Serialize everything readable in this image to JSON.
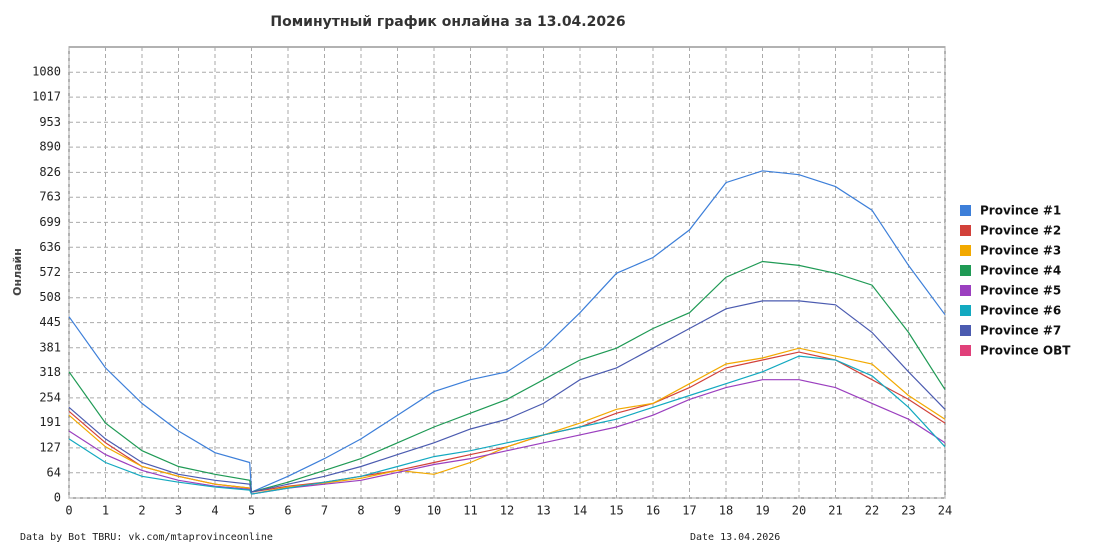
{
  "chart_data": {
    "type": "line",
    "title": "Поминутный график онлайна за 13.04.2026",
    "ylabel": "Онлайн",
    "source": "Data by Bot TBRU: vk.com/mtaprovinceonline",
    "date_note": "Date 13.04.2026",
    "x": [
      0,
      1,
      2,
      3,
      4,
      4.95,
      5,
      6,
      7,
      8,
      9,
      10,
      11,
      12,
      13,
      14,
      15,
      16,
      17,
      18,
      19,
      20,
      21,
      22,
      23,
      24
    ],
    "xlim": [
      0,
      24
    ],
    "xticks": [
      0,
      1,
      2,
      3,
      4,
      5,
      6,
      7,
      8,
      9,
      10,
      11,
      12,
      13,
      14,
      15,
      16,
      17,
      18,
      19,
      20,
      21,
      22,
      23,
      24
    ],
    "ylim": [
      0,
      1144
    ],
    "yticks": [
      0,
      64,
      127,
      191,
      254,
      318,
      381,
      445,
      508,
      572,
      636,
      699,
      763,
      826,
      890,
      953,
      1017,
      1080
    ],
    "grid": true,
    "series": [
      {
        "name": "Province #1",
        "color": "#3d7fd9",
        "values": [
          460,
          330,
          240,
          170,
          115,
          90,
          15,
          55,
          100,
          150,
          210,
          270,
          300,
          320,
          380,
          470,
          570,
          610,
          680,
          800,
          830,
          820,
          790,
          730,
          590,
          465
        ]
      },
      {
        "name": "Province #2",
        "color": "#d2413a",
        "values": [
          220,
          140,
          80,
          55,
          35,
          25,
          15,
          30,
          40,
          55,
          70,
          90,
          110,
          130,
          160,
          180,
          215,
          240,
          280,
          330,
          350,
          370,
          350,
          300,
          250,
          190
        ]
      },
      {
        "name": "Province #3",
        "color": "#f2a900",
        "values": [
          210,
          130,
          80,
          55,
          35,
          25,
          10,
          28,
          38,
          50,
          70,
          60,
          90,
          130,
          160,
          190,
          225,
          240,
          290,
          340,
          355,
          380,
          360,
          340,
          260,
          200
        ]
      },
      {
        "name": "Province #4",
        "color": "#1f9a55",
        "values": [
          320,
          190,
          120,
          80,
          60,
          45,
          15,
          40,
          70,
          100,
          140,
          180,
          215,
          250,
          300,
          350,
          380,
          430,
          470,
          560,
          600,
          590,
          570,
          540,
          420,
          275
        ]
      },
      {
        "name": "Province #5",
        "color": "#9b3fbf",
        "values": [
          170,
          110,
          70,
          45,
          30,
          22,
          10,
          25,
          35,
          45,
          65,
          85,
          100,
          120,
          140,
          160,
          180,
          210,
          250,
          280,
          300,
          300,
          280,
          240,
          200,
          140
        ]
      },
      {
        "name": "Province #6",
        "color": "#13a9c0",
        "values": [
          150,
          90,
          55,
          40,
          28,
          20,
          10,
          25,
          40,
          55,
          80,
          105,
          120,
          140,
          160,
          180,
          200,
          230,
          260,
          290,
          320,
          360,
          350,
          310,
          230,
          130
        ]
      },
      {
        "name": "Province #7",
        "color": "#4b5bb0",
        "values": [
          230,
          150,
          90,
          60,
          45,
          35,
          15,
          35,
          55,
          80,
          110,
          140,
          175,
          200,
          240,
          300,
          330,
          380,
          430,
          480,
          500,
          500,
          490,
          420,
          320,
          225
        ]
      },
      {
        "name": "Province OBT",
        "color": "#e0407a",
        "values": [
          null,
          null,
          null,
          null,
          null,
          null,
          null,
          null,
          null,
          null,
          null,
          null,
          null,
          null,
          null,
          null,
          null,
          null,
          null,
          null,
          null,
          null,
          null,
          null,
          null,
          null
        ]
      }
    ]
  }
}
